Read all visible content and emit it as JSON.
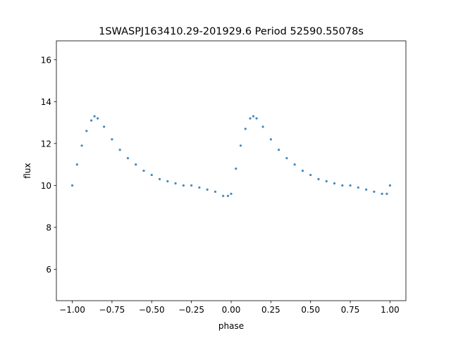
{
  "chart_data": {
    "type": "scatter",
    "title": "1SWASPJ163410.29-201929.6 Period 52590.55078s",
    "xlabel": "phase",
    "ylabel": "flux",
    "xlim": [
      -1.1,
      1.1
    ],
    "ylim": [
      4.5,
      16.9
    ],
    "xticks": [
      -1.0,
      -0.75,
      -0.5,
      -0.25,
      0.0,
      0.25,
      0.5,
      0.75,
      1.0
    ],
    "xtick_labels": [
      "−1.00",
      "−0.75",
      "−0.50",
      "−0.25",
      "0.00",
      "0.25",
      "0.50",
      "0.75",
      "1.00"
    ],
    "yticks": [
      6,
      8,
      10,
      12,
      14,
      16
    ],
    "ytick_labels": [
      "6",
      "8",
      "10",
      "12",
      "14",
      "16"
    ],
    "grid": false,
    "legend": "none",
    "point_color": "#1f77b4",
    "series": [
      {
        "x": [
          -1.0,
          -0.97,
          -0.94,
          -0.91,
          -0.88,
          -0.86,
          -0.84,
          -0.8,
          -0.75,
          -0.7,
          -0.65,
          -0.6,
          -0.55,
          -0.5,
          -0.45,
          -0.4,
          -0.35,
          -0.3,
          -0.25,
          -0.2,
          -0.15,
          -0.1,
          -0.05,
          -0.02,
          0.0,
          0.03,
          0.06,
          0.09,
          0.12,
          0.14,
          0.16,
          0.2,
          0.25,
          0.3,
          0.35,
          0.4,
          0.45,
          0.5,
          0.55,
          0.6,
          0.65,
          0.7,
          0.75,
          0.8,
          0.85,
          0.9,
          0.95,
          0.98,
          1.0
        ],
        "y": [
          10.0,
          11.0,
          11.9,
          12.6,
          13.1,
          13.3,
          13.2,
          12.8,
          12.2,
          11.7,
          11.3,
          11.0,
          10.7,
          10.5,
          10.3,
          10.2,
          10.1,
          10.0,
          10.0,
          9.9,
          9.8,
          9.7,
          9.5,
          9.5,
          9.6,
          10.8,
          11.9,
          12.7,
          13.2,
          13.3,
          13.2,
          12.8,
          12.2,
          11.7,
          11.3,
          11.0,
          10.7,
          10.5,
          10.3,
          10.2,
          10.1,
          10.0,
          10.0,
          9.9,
          9.8,
          9.7,
          9.6,
          9.6,
          10.0
        ]
      }
    ]
  }
}
